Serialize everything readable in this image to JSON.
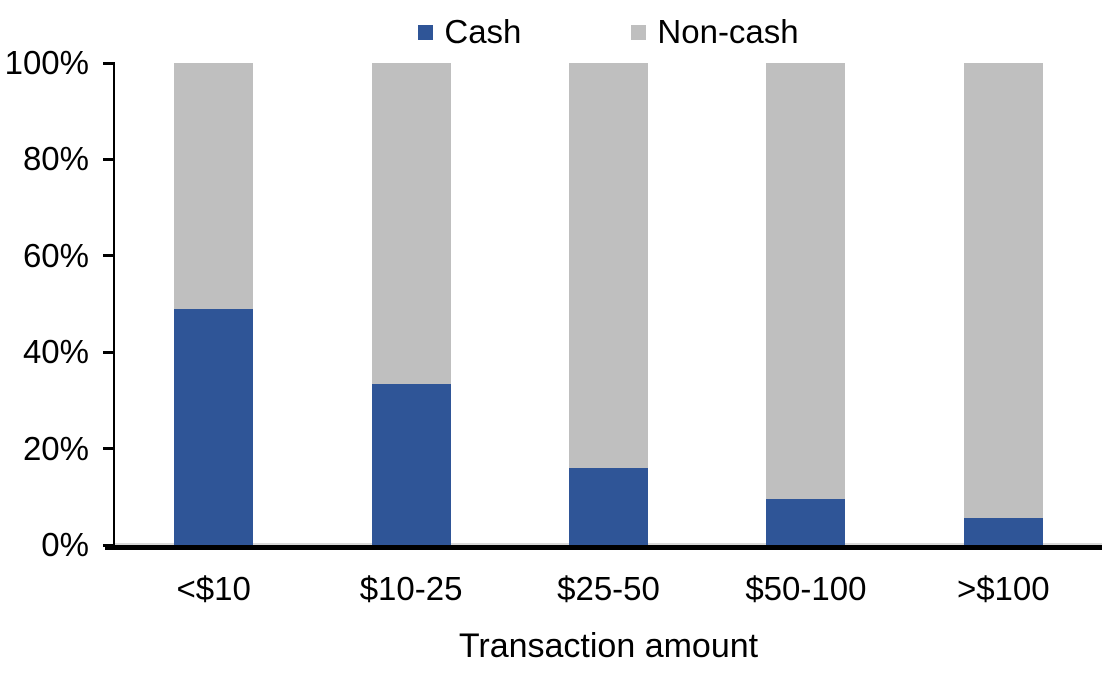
{
  "chart_data": {
    "type": "bar",
    "stacked": true,
    "stacked_to_100_percent": true,
    "title": "",
    "xlabel": "Transaction amount",
    "ylabel": "",
    "categories": [
      "<$10",
      "$10-25",
      "$25-50",
      "$50-100",
      ">$100"
    ],
    "series": [
      {
        "name": "Cash",
        "color": "#2F5597",
        "values": [
          49,
          33.5,
          16,
          9.5,
          5.5
        ]
      },
      {
        "name": "Non-cash",
        "color": "#BFBFBF",
        "values": [
          51,
          66.5,
          84,
          90.5,
          94.5
        ]
      }
    ],
    "ylim": [
      0,
      100
    ],
    "yticks": [
      "0%",
      "20%",
      "40%",
      "60%",
      "80%",
      "100%"
    ],
    "legend_position": "top-center",
    "grid": false,
    "axis_color": "#000000",
    "baseline_color": "#D9D9D9",
    "background_color": "#FFFFFF"
  }
}
